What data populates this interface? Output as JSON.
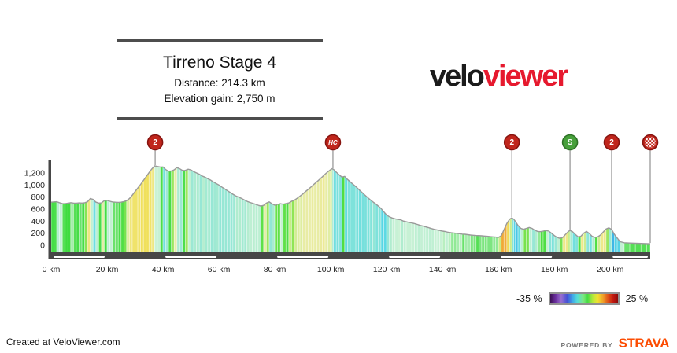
{
  "header": {
    "title": "Tirreno Stage 4",
    "distance_label": "Distance: 214.3 km",
    "elevation_label": "Elevation gain: 2,750 m"
  },
  "logo": {
    "part1": "velo",
    "part2": "viewer"
  },
  "legend": {
    "min_label": "-35 %",
    "max_label": "25 %"
  },
  "footer": {
    "created_at": "Created at VeloViewer.com",
    "powered_by": "POWERED BY",
    "strava": "STRAVA"
  },
  "colors": {
    "climb_marker": "#c0261c",
    "climb_marker_border": "#871410",
    "sprint_marker": "#47a03b",
    "sprint_marker_border": "#2e7226",
    "marker_text": "#ffffff",
    "marker_stem": "#999999",
    "axis": "#474747",
    "axis_dash": "#ffffff",
    "profile_outline": "#9a9a9a",
    "tick_text": "#222222",
    "logo_red": "#e6192e",
    "strava_orange": "#fc4c02"
  },
  "chart_data": {
    "type": "area",
    "title": "Tirreno Stage 4",
    "distance_km": 214.3,
    "elevation_gain_m": 2750,
    "xlim": [
      0,
      214.3
    ],
    "ylim_m": [
      0,
      1350
    ],
    "grid": false,
    "x_ticks_km": [
      0,
      20,
      40,
      60,
      80,
      100,
      120,
      140,
      160,
      180,
      200
    ],
    "x_tick_suffix": " km",
    "y_ticks_m": [
      0,
      200,
      400,
      600,
      800,
      1000,
      1200
    ],
    "gradient_scale": {
      "min_pct": -35,
      "max_pct": 25,
      "stops": [
        [
          -35,
          "#53257e"
        ],
        [
          -18,
          "#5a3fb8"
        ],
        [
          -11,
          "#3f6fd8"
        ],
        [
          -8,
          "#3fbbe8"
        ],
        [
          -5.5,
          "#58d8e4"
        ],
        [
          -3.5,
          "#8ae5d8"
        ],
        [
          -2,
          "#b0eccf"
        ],
        [
          -0.8,
          "#ccf2d6"
        ],
        [
          -0.2,
          "#55df55"
        ],
        [
          0.8,
          "#3fdc3f"
        ],
        [
          1.8,
          "#90e556"
        ],
        [
          2.8,
          "#c8ec8a"
        ],
        [
          3.8,
          "#e7edaa"
        ],
        [
          5,
          "#efe88a"
        ],
        [
          6.5,
          "#f0e05c"
        ],
        [
          8.5,
          "#f0c94a"
        ],
        [
          10.5,
          "#f0a433"
        ],
        [
          13,
          "#ee8428"
        ],
        [
          17,
          "#e65a1c"
        ],
        [
          22,
          "#c42810"
        ],
        [
          25,
          "#9c100a"
        ]
      ]
    },
    "markers": [
      {
        "km": 37.2,
        "label": "2",
        "kind": "cat2"
      },
      {
        "km": 100.8,
        "label": "HC",
        "kind": "hc"
      },
      {
        "km": 164.8,
        "label": "2",
        "kind": "cat2"
      },
      {
        "km": 185.6,
        "label": "S",
        "kind": "sprint"
      },
      {
        "km": 200.5,
        "label": "2",
        "kind": "cat2"
      },
      {
        "km": 214.3,
        "label": "",
        "kind": "finish"
      }
    ],
    "profile_points_km_m": [
      [
        0,
        715
      ],
      [
        1,
        720
      ],
      [
        2,
        722
      ],
      [
        3,
        705
      ],
      [
        4,
        692
      ],
      [
        5,
        690
      ],
      [
        6,
        698
      ],
      [
        7,
        706
      ],
      [
        8,
        700
      ],
      [
        9,
        698
      ],
      [
        10,
        703
      ],
      [
        11,
        700
      ],
      [
        12,
        705
      ],
      [
        13,
        722
      ],
      [
        14,
        775
      ],
      [
        15,
        762
      ],
      [
        16,
        716
      ],
      [
        17,
        700
      ],
      [
        18,
        703
      ],
      [
        19,
        740
      ],
      [
        20,
        746
      ],
      [
        21,
        730
      ],
      [
        22,
        718
      ],
      [
        23,
        715
      ],
      [
        24,
        712
      ],
      [
        25,
        715
      ],
      [
        26,
        725
      ],
      [
        27,
        740
      ],
      [
        28,
        775
      ],
      [
        29,
        830
      ],
      [
        30,
        890
      ],
      [
        31,
        950
      ],
      [
        32,
        1010
      ],
      [
        33,
        1075
      ],
      [
        34,
        1140
      ],
      [
        35,
        1205
      ],
      [
        36,
        1265
      ],
      [
        37,
        1317
      ],
      [
        38,
        1308
      ],
      [
        39,
        1298
      ],
      [
        40,
        1300
      ],
      [
        41,
        1255
      ],
      [
        42,
        1228
      ],
      [
        43,
        1232
      ],
      [
        44,
        1252
      ],
      [
        45,
        1290
      ],
      [
        46,
        1268
      ],
      [
        47,
        1240
      ],
      [
        48,
        1242
      ],
      [
        49,
        1262
      ],
      [
        50,
        1250
      ],
      [
        51,
        1222
      ],
      [
        52,
        1200
      ],
      [
        53,
        1178
      ],
      [
        54,
        1148
      ],
      [
        55,
        1130
      ],
      [
        56,
        1105
      ],
      [
        57,
        1082
      ],
      [
        58,
        1052
      ],
      [
        59,
        1025
      ],
      [
        60,
        1000
      ],
      [
        61,
        968
      ],
      [
        62,
        938
      ],
      [
        63,
        908
      ],
      [
        64,
        878
      ],
      [
        65,
        848
      ],
      [
        66,
        820
      ],
      [
        67,
        800
      ],
      [
        68,
        780
      ],
      [
        69,
        755
      ],
      [
        70,
        730
      ],
      [
        71,
        712
      ],
      [
        72,
        698
      ],
      [
        73,
        682
      ],
      [
        74,
        665
      ],
      [
        75,
        650
      ],
      [
        76,
        662
      ],
      [
        77,
        700
      ],
      [
        78,
        720
      ],
      [
        79,
        688
      ],
      [
        80,
        665
      ],
      [
        81,
        678
      ],
      [
        82,
        690
      ],
      [
        83,
        680
      ],
      [
        84,
        692
      ],
      [
        85,
        702
      ],
      [
        86,
        730
      ],
      [
        87,
        748
      ],
      [
        88,
        780
      ],
      [
        89,
        815
      ],
      [
        90,
        850
      ],
      [
        91,
        890
      ],
      [
        92,
        930
      ],
      [
        93,
        970
      ],
      [
        94,
        1012
      ],
      [
        95,
        1052
      ],
      [
        96,
        1092
      ],
      [
        97,
        1135
      ],
      [
        98,
        1180
      ],
      [
        99,
        1220
      ],
      [
        100,
        1256
      ],
      [
        100.5,
        1270
      ],
      [
        101,
        1258
      ],
      [
        102,
        1212
      ],
      [
        103,
        1170
      ],
      [
        104,
        1132
      ],
      [
        105,
        1142
      ],
      [
        106,
        1092
      ],
      [
        107,
        1052
      ],
      [
        108,
        1012
      ],
      [
        109,
        972
      ],
      [
        110,
        930
      ],
      [
        111,
        885
      ],
      [
        112,
        842
      ],
      [
        113,
        800
      ],
      [
        114,
        760
      ],
      [
        115,
        722
      ],
      [
        116,
        690
      ],
      [
        117,
        650
      ],
      [
        118,
        612
      ],
      [
        119,
        555
      ],
      [
        120,
        502
      ],
      [
        121,
        472
      ],
      [
        122,
        452
      ],
      [
        123,
        440
      ],
      [
        124,
        430
      ],
      [
        125,
        422
      ],
      [
        126,
        402
      ],
      [
        127,
        390
      ],
      [
        128,
        380
      ],
      [
        129,
        370
      ],
      [
        130,
        360
      ],
      [
        131,
        345
      ],
      [
        132,
        330
      ],
      [
        133,
        318
      ],
      [
        134,
        305
      ],
      [
        135,
        292
      ],
      [
        136,
        278
      ],
      [
        137,
        265
      ],
      [
        138,
        255
      ],
      [
        139,
        245
      ],
      [
        140,
        235
      ],
      [
        141,
        228
      ],
      [
        142,
        215
      ],
      [
        143,
        208
      ],
      [
        144,
        203
      ],
      [
        145,
        198
      ],
      [
        146,
        192
      ],
      [
        147,
        185
      ],
      [
        148,
        182
      ],
      [
        149,
        176
      ],
      [
        150,
        170
      ],
      [
        151,
        166
      ],
      [
        152,
        162
      ],
      [
        153,
        160
      ],
      [
        154,
        156
      ],
      [
        155,
        152
      ],
      [
        156,
        148
      ],
      [
        157,
        144
      ],
      [
        158,
        140
      ],
      [
        159,
        135
      ],
      [
        160,
        130
      ],
      [
        161,
        158
      ],
      [
        162,
        260
      ],
      [
        163,
        360
      ],
      [
        164,
        432
      ],
      [
        164.8,
        455
      ],
      [
        165.5,
        430
      ],
      [
        166,
        400
      ],
      [
        167,
        330
      ],
      [
        168,
        280
      ],
      [
        169,
        265
      ],
      [
        170,
        280
      ],
      [
        171,
        295
      ],
      [
        172,
        280
      ],
      [
        173,
        250
      ],
      [
        174,
        230
      ],
      [
        175,
        225
      ],
      [
        176,
        235
      ],
      [
        177,
        245
      ],
      [
        178,
        235
      ],
      [
        179,
        200
      ],
      [
        180,
        160
      ],
      [
        181,
        130
      ],
      [
        182,
        115
      ],
      [
        183,
        130
      ],
      [
        184,
        180
      ],
      [
        185,
        230
      ],
      [
        185.6,
        245
      ],
      [
        186.5,
        225
      ],
      [
        187.5,
        180
      ],
      [
        188.5,
        140
      ],
      [
        189.5,
        150
      ],
      [
        190.5,
        200
      ],
      [
        191.5,
        230
      ],
      [
        192.5,
        195
      ],
      [
        193.5,
        150
      ],
      [
        194.5,
        130
      ],
      [
        195.5,
        140
      ],
      [
        196.5,
        170
      ],
      [
        197.5,
        220
      ],
      [
        198.5,
        270
      ],
      [
        199.5,
        290
      ],
      [
        200.5,
        262
      ],
      [
        201.5,
        180
      ],
      [
        202.5,
        120
      ],
      [
        203.5,
        60
      ],
      [
        205,
        42
      ],
      [
        207,
        36
      ],
      [
        209,
        32
      ],
      [
        211,
        30
      ],
      [
        213,
        27
      ],
      [
        214.3,
        25
      ]
    ]
  }
}
